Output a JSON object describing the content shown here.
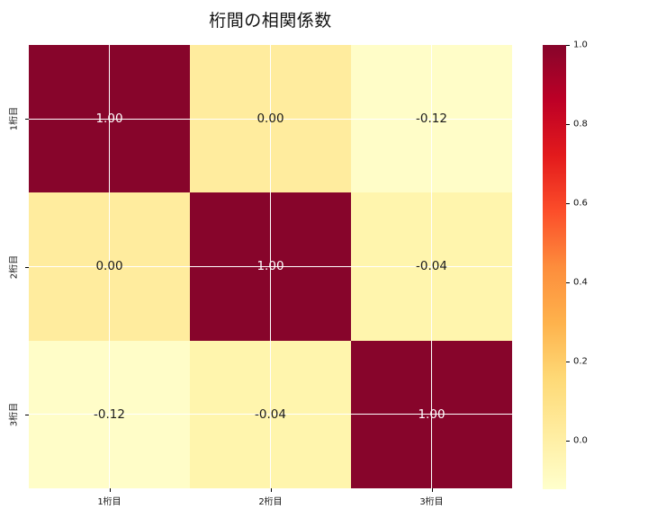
{
  "chart_data": {
    "type": "heatmap",
    "title": "桁間の相関係数",
    "categories": [
      "1桁目",
      "2桁目",
      "3桁目"
    ],
    "matrix": [
      [
        1.0,
        0.0,
        -0.12
      ],
      [
        0.0,
        1.0,
        -0.04
      ],
      [
        -0.12,
        -0.04,
        1.0
      ]
    ],
    "cell_labels": [
      [
        "1.00",
        "0.00",
        "-0.12"
      ],
      [
        "0.00",
        "1.00",
        "-0.04"
      ],
      [
        "-0.12",
        "-0.04",
        "1.00"
      ]
    ],
    "cell_colors": [
      [
        "#87052b",
        "#ffec9e",
        "#fffdc8"
      ],
      [
        "#ffec9e",
        "#87052b",
        "#fff5ad"
      ],
      [
        "#fffdc8",
        "#fff5ad",
        "#87052b"
      ]
    ],
    "cell_text_colors": [
      [
        "#ffffff",
        "#1a1a1a",
        "#1a1a1a"
      ],
      [
        "#1a1a1a",
        "#ffffff",
        "#1a1a1a"
      ],
      [
        "#1a1a1a",
        "#1a1a1a",
        "#ffffff"
      ]
    ],
    "grid": true,
    "gridline_color": "#ffffff",
    "legend_position": "right-colorbar",
    "colorbar": {
      "vmin": -0.123,
      "vmax": 1.0,
      "ticks": [
        {
          "label": "1.0",
          "value": 1.0
        },
        {
          "label": "0.8",
          "value": 0.8
        },
        {
          "label": "0.6",
          "value": 0.6
        },
        {
          "label": "0.4",
          "value": 0.4
        },
        {
          "label": "0.2",
          "value": 0.2
        },
        {
          "label": "0.0",
          "value": 0.0
        }
      ],
      "colormap": "YlOrRd",
      "gradient_stops": [
        {
          "color": "#ffffcc",
          "pos": 0
        },
        {
          "color": "#ffeda0",
          "pos": 12.5
        },
        {
          "color": "#fed976",
          "pos": 25
        },
        {
          "color": "#feb24c",
          "pos": 37.5
        },
        {
          "color": "#fd8d3c",
          "pos": 50
        },
        {
          "color": "#fc4e2a",
          "pos": 62.5
        },
        {
          "color": "#e31a1c",
          "pos": 75
        },
        {
          "color": "#bd0026",
          "pos": 87.5
        },
        {
          "color": "#87052b",
          "pos": 100
        }
      ]
    }
  }
}
